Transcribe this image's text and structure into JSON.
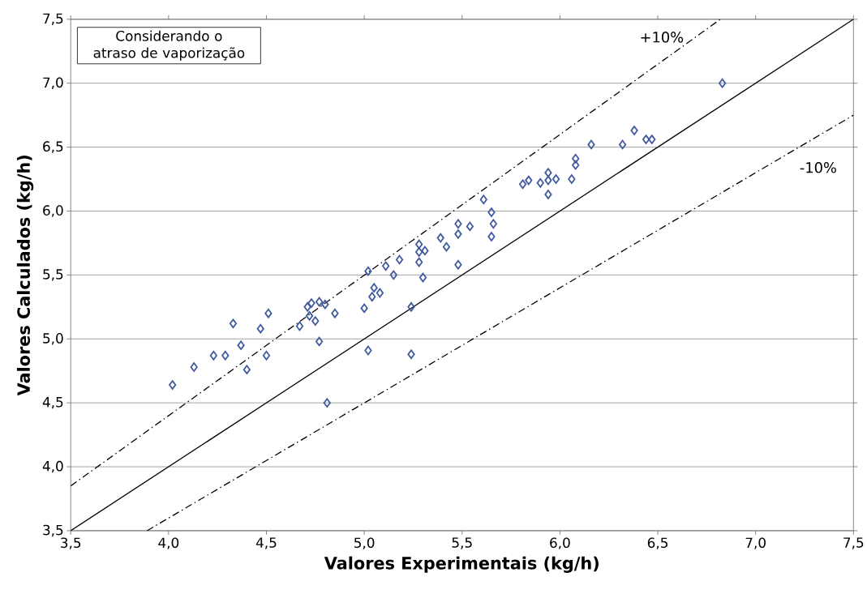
{
  "chart_data": {
    "type": "scatter",
    "xlabel": "Valores Experimentais (kg/h)",
    "ylabel": "Valores Calculados (kg/h)",
    "xlim": [
      3.5,
      7.5
    ],
    "ylim": [
      3.5,
      7.5
    ],
    "xticks": [
      {
        "value": 3.5,
        "label": "3,5"
      },
      {
        "value": 4.0,
        "label": "4,0"
      },
      {
        "value": 4.5,
        "label": "4,5"
      },
      {
        "value": 5.0,
        "label": "5,0"
      },
      {
        "value": 5.5,
        "label": "5,5"
      },
      {
        "value": 6.0,
        "label": "6,0"
      },
      {
        "value": 6.5,
        "label": "6,5"
      },
      {
        "value": 7.0,
        "label": "7,0"
      },
      {
        "value": 7.5,
        "label": "7,5"
      }
    ],
    "yticks": [
      {
        "value": 3.5,
        "label": "3,5"
      },
      {
        "value": 4.0,
        "label": "4,0"
      },
      {
        "value": 4.5,
        "label": "4,5"
      },
      {
        "value": 5.0,
        "label": "5,0"
      },
      {
        "value": 5.5,
        "label": "5,5"
      },
      {
        "value": 6.0,
        "label": "6,0"
      },
      {
        "value": 6.5,
        "label": "6,5"
      },
      {
        "value": 7.0,
        "label": "7,0"
      },
      {
        "value": 7.5,
        "label": "7,5"
      }
    ],
    "grid": "y",
    "series": [
      {
        "color": "#3f5a9e",
        "marker": "diamond",
        "x": [
          4.02,
          4.13,
          4.23,
          4.29,
          4.33,
          4.37,
          4.4,
          4.47,
          4.51,
          4.5,
          4.67,
          4.72,
          4.75,
          4.71,
          4.73,
          4.77,
          4.8,
          4.85,
          4.77,
          4.81,
          5.0,
          5.05,
          5.04,
          5.08,
          5.02,
          5.02,
          5.11,
          5.15,
          5.3,
          5.24,
          5.24,
          5.18,
          5.28,
          5.28,
          5.31,
          5.28,
          5.42,
          5.48,
          5.61,
          5.65,
          5.66,
          5.65,
          5.48,
          5.54,
          5.48,
          5.39,
          5.94,
          5.81,
          5.84,
          5.9,
          5.94,
          5.94,
          5.98,
          6.06,
          6.08,
          6.08,
          6.16,
          6.32,
          6.38,
          6.44,
          6.47,
          6.83
        ],
        "values": [
          4.64,
          4.78,
          4.87,
          4.87,
          5.12,
          4.95,
          4.76,
          5.08,
          5.2,
          4.87,
          5.1,
          5.18,
          5.14,
          5.25,
          5.28,
          5.29,
          5.27,
          5.2,
          4.98,
          4.5,
          5.24,
          5.4,
          5.33,
          5.36,
          4.91,
          5.53,
          5.57,
          5.5,
          5.48,
          5.25,
          4.88,
          5.62,
          5.6,
          5.68,
          5.69,
          5.74,
          5.72,
          5.58,
          6.09,
          5.99,
          5.9,
          5.8,
          5.9,
          5.88,
          5.82,
          5.79,
          6.13,
          6.21,
          6.24,
          6.22,
          6.3,
          6.24,
          6.25,
          6.25,
          6.41,
          6.36,
          6.52,
          6.52,
          6.63,
          6.56,
          6.56,
          7.0
        ]
      },
      {
        "type": "line",
        "color": "#000000",
        "line_style": "solid",
        "x": [
          3.5,
          7.5
        ],
        "values": [
          3.5,
          7.5
        ]
      },
      {
        "type": "line",
        "color": "#000000",
        "line_style": "dashdot",
        "x": [
          3.5,
          6.82
        ],
        "values": [
          3.85,
          7.5
        ]
      },
      {
        "type": "line",
        "color": "#000000",
        "line_style": "dashdot",
        "x": [
          3.89,
          7.5
        ],
        "values": [
          3.5,
          6.75
        ]
      }
    ],
    "annotations": [
      "Considerando o atraso de vaporização",
      "+10%",
      "-10%"
    ]
  }
}
